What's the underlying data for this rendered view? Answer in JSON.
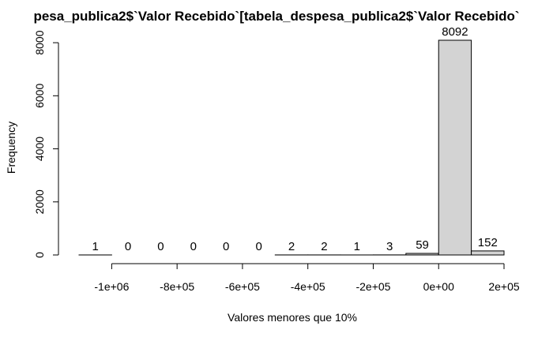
{
  "chart_data": {
    "type": "bar",
    "title": "pesa_publica2$`Valor Recebido`[tabela_despesa_publica2$`Valor Recebido`",
    "xlabel": "Valores menores que 10%",
    "ylabel": "Frequency",
    "bins": [
      {
        "from": -1100000,
        "to": -1000000,
        "count": 1,
        "label": "1"
      },
      {
        "from": -1000000,
        "to": -900000,
        "count": 0,
        "label": "0"
      },
      {
        "from": -900000,
        "to": -800000,
        "count": 0,
        "label": "0"
      },
      {
        "from": -800000,
        "to": -700000,
        "count": 0,
        "label": "0"
      },
      {
        "from": -700000,
        "to": -600000,
        "count": 0,
        "label": "0"
      },
      {
        "from": -600000,
        "to": -500000,
        "count": 0,
        "label": "0"
      },
      {
        "from": -500000,
        "to": -400000,
        "count": 2,
        "label": "2"
      },
      {
        "from": -400000,
        "to": -300000,
        "count": 2,
        "label": "2"
      },
      {
        "from": -300000,
        "to": -200000,
        "count": 1,
        "label": "1"
      },
      {
        "from": -200000,
        "to": -100000,
        "count": 3,
        "label": "3"
      },
      {
        "from": -100000,
        "to": 0,
        "count": 59,
        "label": "59"
      },
      {
        "from": 0,
        "to": 100000,
        "count": 8092,
        "label": "8092"
      },
      {
        "from": 100000,
        "to": 200000,
        "count": 152,
        "label": "152"
      }
    ],
    "xlim": [
      -1100000,
      200000
    ],
    "ylim": [
      0,
      8092
    ],
    "x_ticks": [
      {
        "value": -1000000,
        "label": "-1e+06"
      },
      {
        "value": -800000,
        "label": "-8e+05"
      },
      {
        "value": -600000,
        "label": "-6e+05"
      },
      {
        "value": -400000,
        "label": "-4e+05"
      },
      {
        "value": -200000,
        "label": "-2e+05"
      },
      {
        "value": 0,
        "label": "0e+00"
      },
      {
        "value": 200000,
        "label": "2e+05"
      }
    ],
    "y_ticks": [
      {
        "value": 0,
        "label": "0"
      },
      {
        "value": 2000,
        "label": "2000"
      },
      {
        "value": 4000,
        "label": "4000"
      },
      {
        "value": 6000,
        "label": "6000"
      },
      {
        "value": 8000,
        "label": "8000"
      }
    ],
    "colors": {
      "bar_fill": "#d3d3d3",
      "bar_stroke": "#000000"
    },
    "grid": false,
    "legend": "none"
  }
}
